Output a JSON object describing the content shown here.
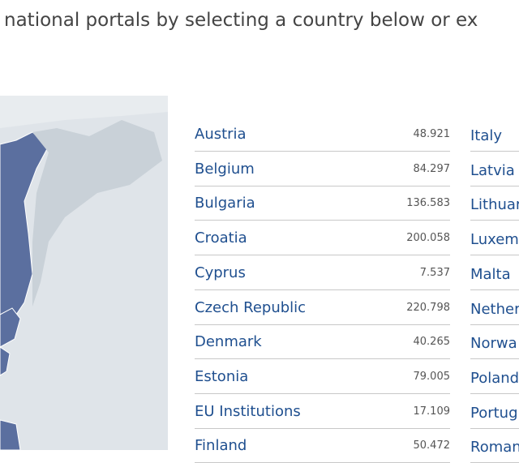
{
  "header": {
    "text": "national portals by selecting a country below or ex"
  },
  "countries_left": [
    {
      "name": "Austria",
      "value": "48.921"
    },
    {
      "name": "Belgium",
      "value": "84.297"
    },
    {
      "name": "Bulgaria",
      "value": "136.583"
    },
    {
      "name": "Croatia",
      "value": "200.058"
    },
    {
      "name": "Cyprus",
      "value": "7.537"
    },
    {
      "name": "Czech Republic",
      "value": "220.798"
    },
    {
      "name": "Denmark",
      "value": "40.265"
    },
    {
      "name": "Estonia",
      "value": "79.005"
    },
    {
      "name": "EU Institutions",
      "value": "17.109"
    },
    {
      "name": "Finland",
      "value": "50.472"
    }
  ],
  "countries_right": [
    {
      "name": "Italy"
    },
    {
      "name": "Latvia"
    },
    {
      "name": "Lithuar"
    },
    {
      "name": "Luxem"
    },
    {
      "name": "Malta"
    },
    {
      "name": "Nether"
    },
    {
      "name": "Norwa"
    },
    {
      "name": "Poland"
    },
    {
      "name": "Portug"
    },
    {
      "name": "Roman"
    }
  ]
}
